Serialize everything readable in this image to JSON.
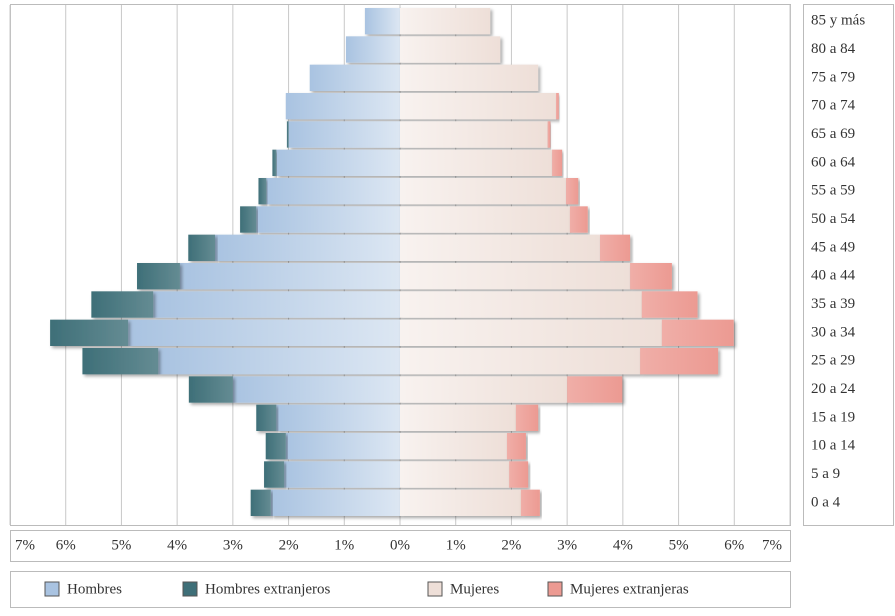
{
  "chart_data": {
    "type": "pyramid",
    "categories": [
      "85 y más",
      "80 a 84",
      "75 a 79",
      "70 a 74",
      "65 a 69",
      "60 a 64",
      "55 a 59",
      "50 a 54",
      "45 a 49",
      "40 a 44",
      "35 a 39",
      "30 a 34",
      "25 a 29",
      "20 a 24",
      "15 a 19",
      "10 a 14",
      "5 a 9",
      "0 a 4"
    ],
    "series": [
      {
        "name": "Hombres",
        "color": "#a9c3e1",
        "side": "left",
        "values": [
          0.63,
          0.97,
          1.62,
          2.05,
          2.0,
          2.22,
          2.4,
          2.58,
          3.32,
          3.95,
          4.43,
          4.88,
          4.34,
          3.0,
          2.22,
          2.05,
          2.08,
          2.32
        ]
      },
      {
        "name": "Hombres extranjeros",
        "color": "#3e6f78",
        "side": "left",
        "values": [
          0,
          0,
          0,
          0,
          0.03,
          0.07,
          0.14,
          0.29,
          0.48,
          0.77,
          1.11,
          1.4,
          1.36,
          0.79,
          0.36,
          0.36,
          0.36,
          0.36
        ]
      },
      {
        "name": "Mujeres",
        "color": "#eedfd8",
        "side": "right",
        "values": [
          1.62,
          1.8,
          2.48,
          2.8,
          2.65,
          2.73,
          2.98,
          3.05,
          3.59,
          4.13,
          4.34,
          4.7,
          4.31,
          3.0,
          2.08,
          1.92,
          1.96,
          2.17
        ]
      },
      {
        "name": "Mujeres extranjeras",
        "color": "#ec9a92",
        "side": "right",
        "values": [
          0,
          0,
          0,
          0.05,
          0.05,
          0.18,
          0.22,
          0.32,
          0.54,
          0.75,
          1.0,
          1.29,
          1.4,
          0.99,
          0.4,
          0.34,
          0.34,
          0.34
        ]
      }
    ],
    "xlim": [
      -7,
      7
    ],
    "xticks": [
      {
        "value": -7,
        "label": "7%"
      },
      {
        "value": -6,
        "label": "6%"
      },
      {
        "value": -5,
        "label": "5%"
      },
      {
        "value": -4,
        "label": "4%"
      },
      {
        "value": -3,
        "label": "3%"
      },
      {
        "value": -2,
        "label": "2%"
      },
      {
        "value": -1,
        "label": "1%"
      },
      {
        "value": 0,
        "label": "0%"
      },
      {
        "value": 1,
        "label": "1%"
      },
      {
        "value": 2,
        "label": "2%"
      },
      {
        "value": 3,
        "label": "3%"
      },
      {
        "value": 4,
        "label": "4%"
      },
      {
        "value": 5,
        "label": "5%"
      },
      {
        "value": 6,
        "label": "6%"
      },
      {
        "value": 7,
        "label": "7%"
      }
    ],
    "grid": true
  }
}
